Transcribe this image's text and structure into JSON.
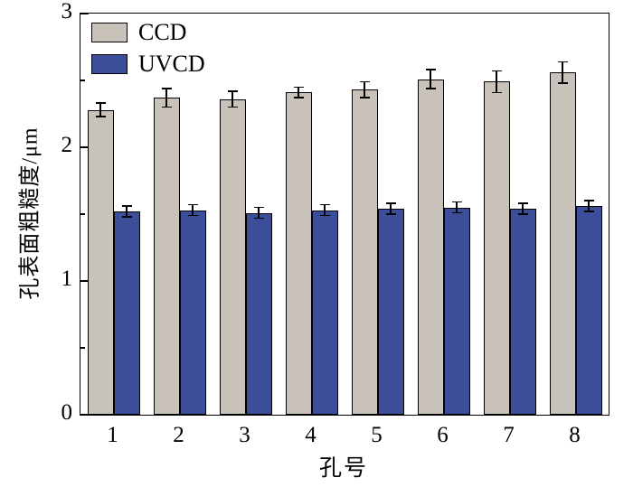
{
  "chart_data": {
    "type": "bar",
    "title": "",
    "xlabel": "孔号",
    "ylabel": "孔表面粗糙度/μm",
    "ylim": [
      0,
      3
    ],
    "yticks": [
      0,
      1,
      2,
      3
    ],
    "yticks_minor": [
      0.5,
      1.5,
      2.5
    ],
    "grid": false,
    "legend_position": "top-left",
    "categories": [
      "1",
      "2",
      "3",
      "4",
      "5",
      "6",
      "7",
      "8"
    ],
    "series": [
      {
        "name": "CCD",
        "color": "#c9c2bb",
        "values": [
          2.28,
          2.37,
          2.36,
          2.41,
          2.43,
          2.51,
          2.49,
          2.56
        ],
        "errors": [
          0.05,
          0.07,
          0.06,
          0.04,
          0.06,
          0.07,
          0.08,
          0.08
        ]
      },
      {
        "name": "UVCD",
        "color": "#3c4e9a",
        "values": [
          1.52,
          1.53,
          1.51,
          1.53,
          1.54,
          1.55,
          1.54,
          1.56
        ],
        "errors": [
          0.04,
          0.04,
          0.04,
          0.04,
          0.04,
          0.04,
          0.04,
          0.04
        ]
      }
    ]
  }
}
